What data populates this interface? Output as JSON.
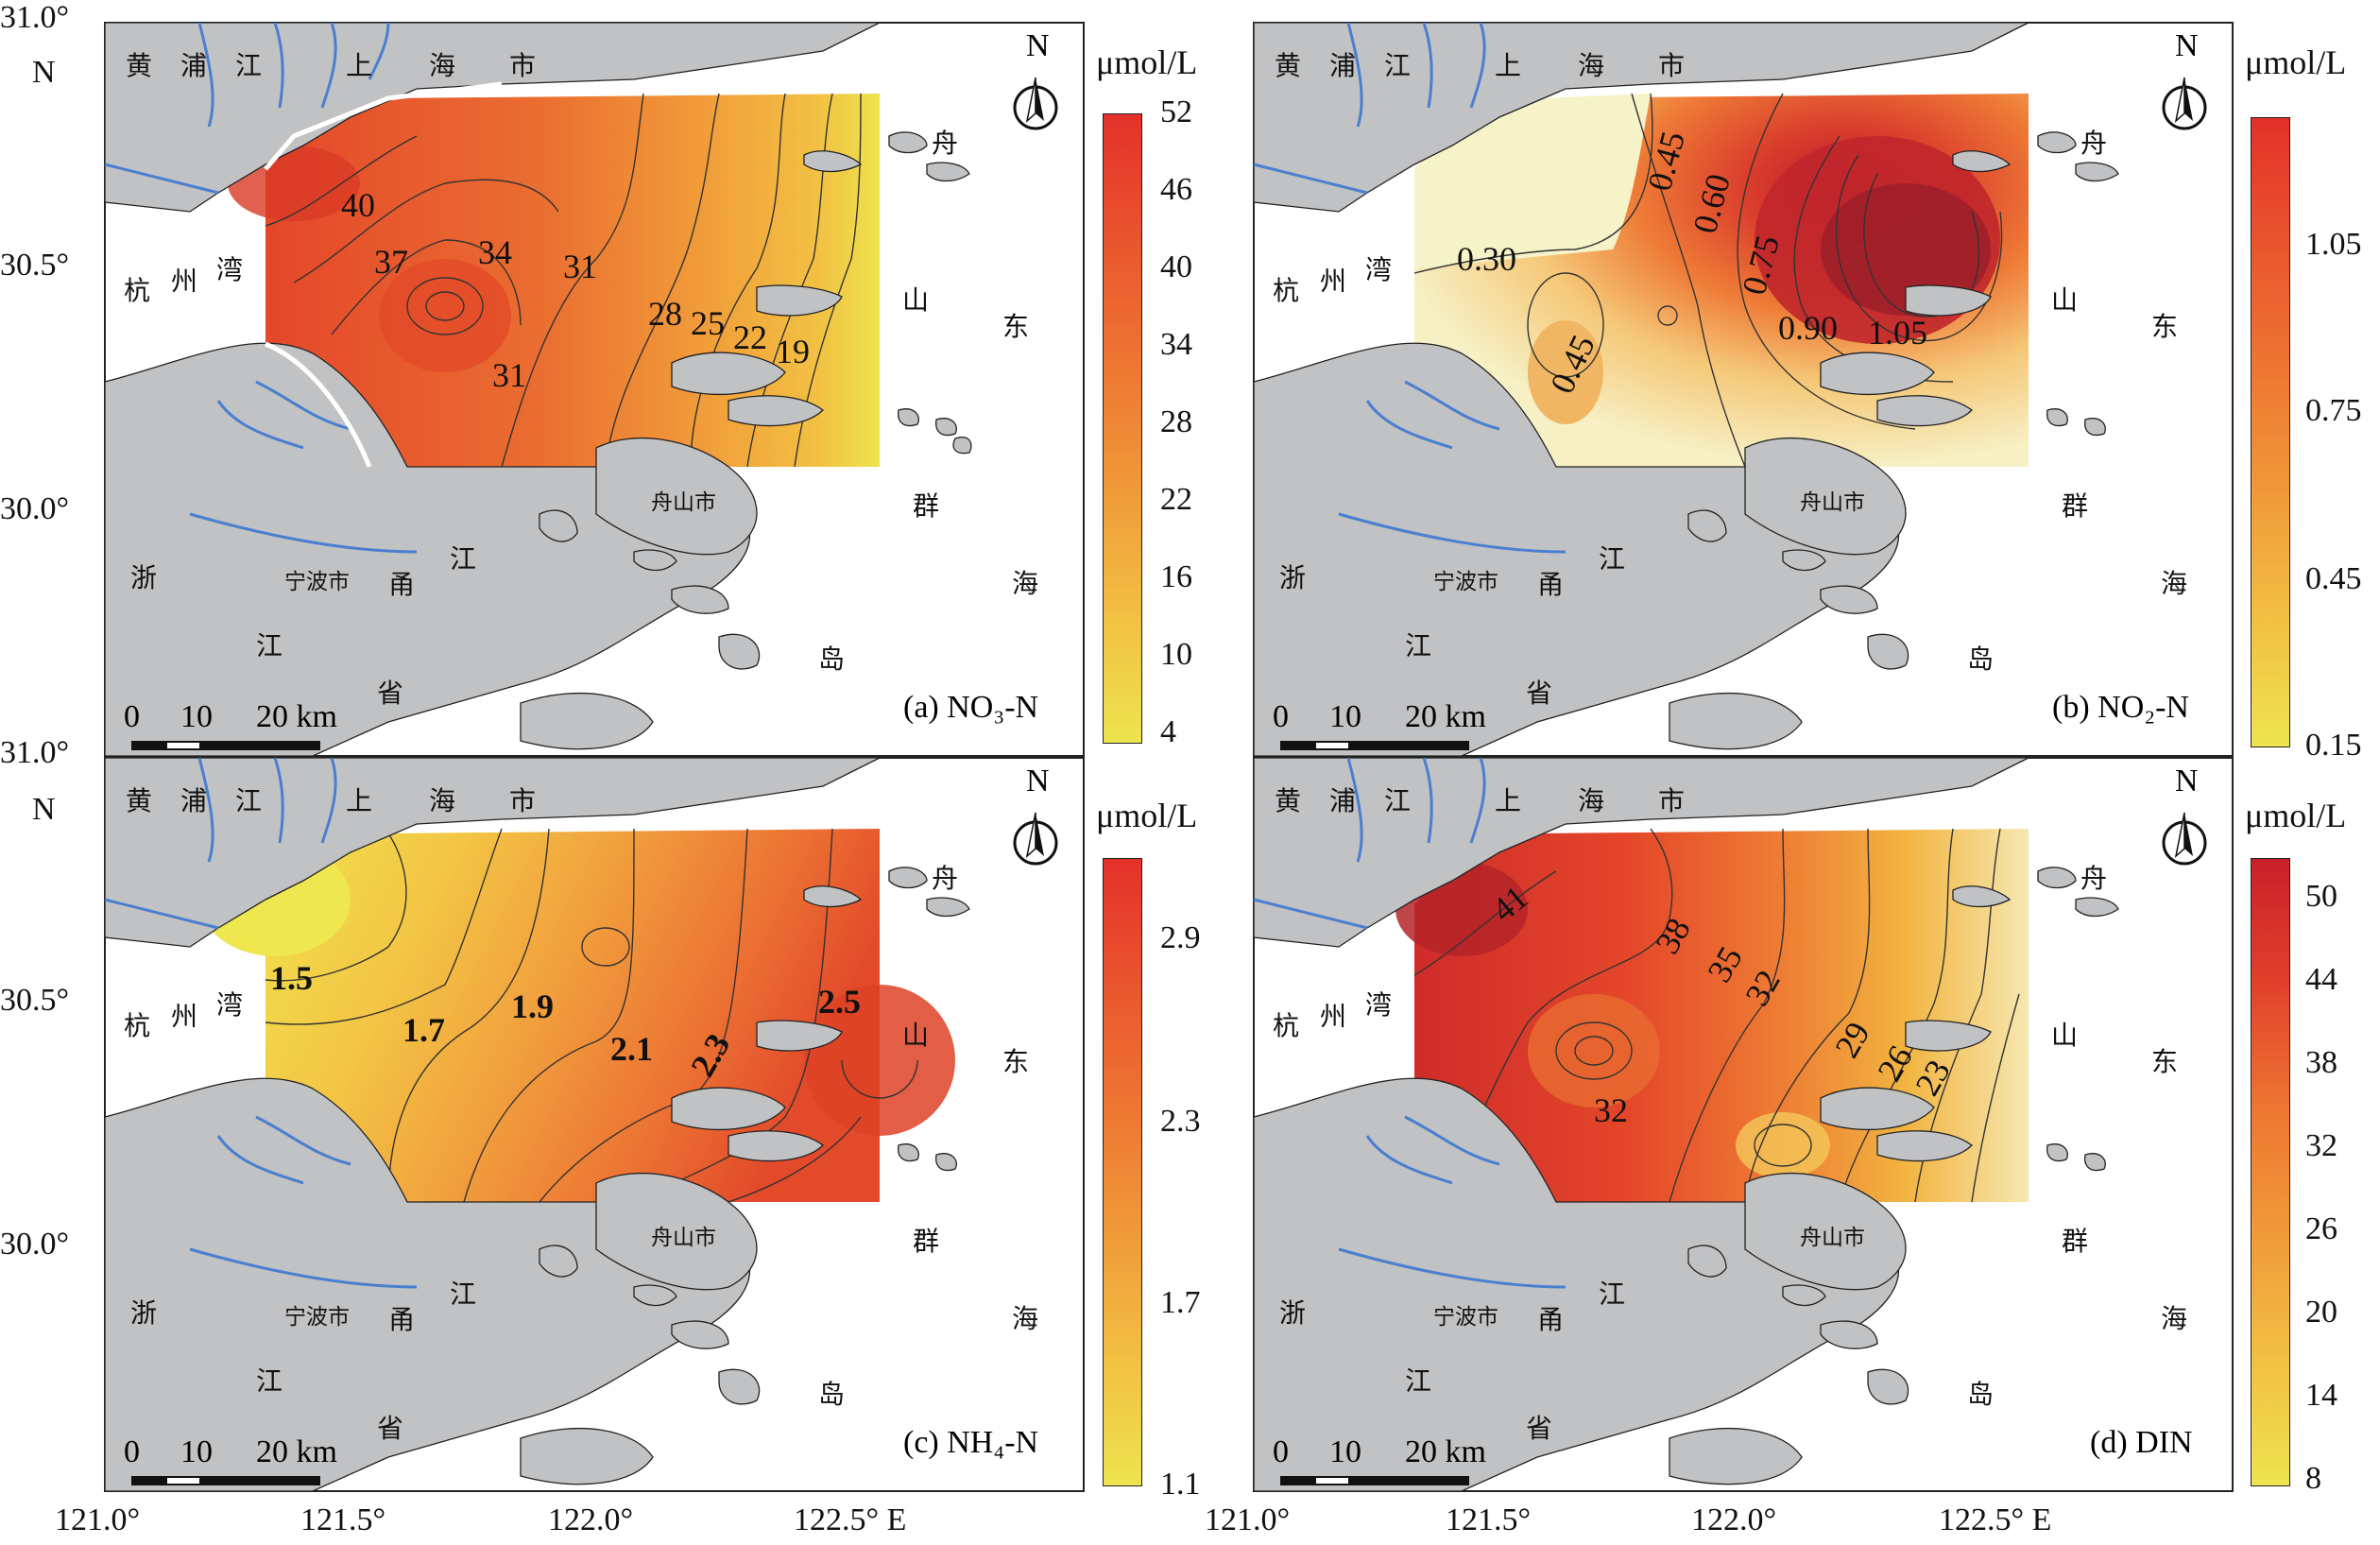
{
  "unit": "μmol/L",
  "north": "N",
  "scale": {
    "t0": "0",
    "t10": "10",
    "t20": "20 km"
  },
  "y_labels": {
    "top_a": "31.0°",
    "n_a": "N",
    "mid_a": "30.5°",
    "low_a": "30.0°",
    "top_c": "31.0°",
    "n_c": "N",
    "mid_c": "30.5°",
    "low_c": "30.0°"
  },
  "x_labels": {
    "x1": "121.0°",
    "x2": "121.5°",
    "x3": "122.0°",
    "x4": "122.5° E",
    "x5": "121.0°",
    "x6": "121.5°",
    "x7": "122.0°",
    "x8": "122.5° E"
  },
  "places": {
    "huangpu1": "黄",
    "huangpu2": "浦",
    "huangpu3": "江",
    "sh1": "上",
    "sh2": "海",
    "sh3": "市",
    "hz1": "杭",
    "hz2": "州",
    "hz3": "湾",
    "zs": "舟",
    "shan": "山",
    "dong": "东",
    "qun": "群",
    "hai": "海",
    "dao": "岛",
    "zhe": "浙",
    "jiang": "江",
    "sheng": "省",
    "yong": "甬",
    "jiang2": "江",
    "ningbo": "宁波市",
    "zhoushan": "舟山市"
  },
  "panels": [
    {
      "id": "a",
      "caption": "(a) NO₃-N",
      "ticks": [
        "52",
        "46",
        "40",
        "34",
        "28",
        "22",
        "16",
        "10",
        "4"
      ],
      "contours": [
        "40",
        "37",
        "34",
        "31",
        "28",
        "25",
        "22",
        "19",
        "31"
      ]
    },
    {
      "id": "b",
      "caption": "(b) NO₂-N",
      "ticks": [
        "1.05",
        "0.75",
        "0.45",
        "0.15"
      ],
      "contours": [
        "0.30",
        "0.45",
        "0.60",
        "0.75",
        "0.90",
        "1.05",
        "0.45"
      ]
    },
    {
      "id": "c",
      "caption": "(c) NH₄-N",
      "ticks": [
        "2.9",
        "2.3",
        "1.7",
        "1.1"
      ],
      "contours": [
        "1.5",
        "1.7",
        "1.9",
        "2.1",
        "2.3",
        "2.5"
      ]
    },
    {
      "id": "d",
      "caption": "(d) DIN",
      "ticks": [
        "50",
        "44",
        "38",
        "32",
        "26",
        "20",
        "14",
        "8"
      ],
      "contours": [
        "41",
        "38",
        "35",
        "32",
        "32",
        "29",
        "26",
        "23"
      ]
    }
  ],
  "colors": {
    "land": "#c1c2c4",
    "river": "#4a7fd0",
    "border": "#222222"
  }
}
